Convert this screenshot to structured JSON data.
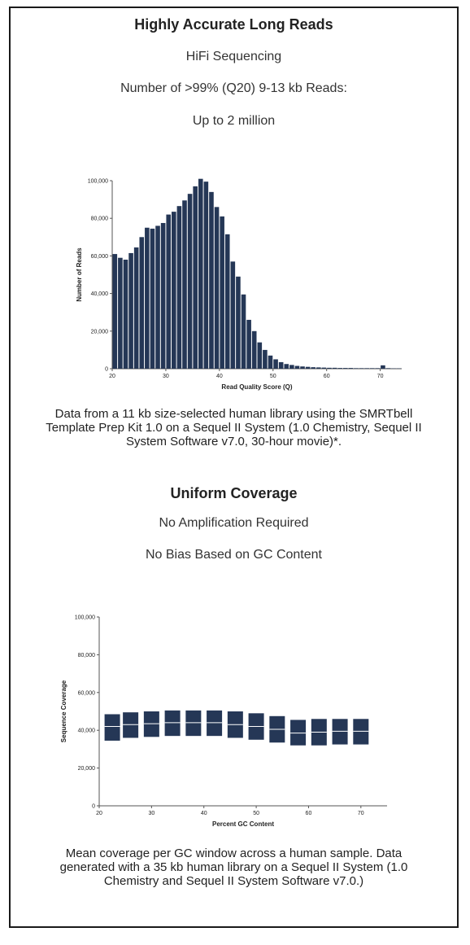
{
  "section1": {
    "title": "Highly Accurate Long Reads",
    "line1": "HiFi Sequencing",
    "line2": "Number of >99% (Q20) 9-13 kb Reads:",
    "line3": "Up to 2 million",
    "caption": "Data from a 11 kb size-selected human library using the SMRTbell Template Prep Kit 1.0 on a Sequel II System (1.0 Chemistry, Sequel II System Software v7.0, 30-hour movie)*."
  },
  "section2": {
    "title": "Uniform Coverage",
    "line1": "No Amplification Required",
    "line2": "No Bias Based on GC Content",
    "caption": "Mean coverage per GC window across a human sample. Data generated with a 35 kb human library on a Sequel II System (1.0 Chemistry and Sequel II System Software v7.0.)"
  },
  "colors": {
    "bar": "#253756",
    "axis": "#555555",
    "median": "#ffffff"
  },
  "chart_data": [
    {
      "type": "bar",
      "xlabel": "Read Quality Score (Q)",
      "ylabel": "Number of Reads",
      "xlim": [
        20,
        74
      ],
      "ylim": [
        0,
        100000
      ],
      "xticks": [
        20,
        30,
        40,
        50,
        60,
        70
      ],
      "yticks": [
        0,
        20000,
        40000,
        60000,
        80000,
        100000
      ],
      "ytick_labels": [
        "0",
        "20,000",
        "40,000",
        "60,000",
        "80,000",
        "100,000"
      ],
      "x": [
        20,
        21,
        22,
        23,
        24,
        25,
        26,
        27,
        28,
        29,
        30,
        31,
        32,
        33,
        34,
        35,
        36,
        37,
        38,
        39,
        40,
        41,
        42,
        43,
        44,
        45,
        46,
        47,
        48,
        49,
        50,
        51,
        52,
        53,
        54,
        55,
        56,
        57,
        58,
        59,
        60,
        61,
        62,
        63,
        64,
        65,
        66,
        67,
        68,
        69,
        70,
        71,
        72,
        73
      ],
      "values": [
        61000,
        59000,
        58000,
        61500,
        64500,
        70000,
        75000,
        74500,
        76000,
        77500,
        82000,
        83500,
        86500,
        89500,
        93000,
        97000,
        101000,
        99500,
        94000,
        86000,
        81000,
        71500,
        57000,
        49000,
        39500,
        26000,
        20000,
        14000,
        10000,
        7000,
        5000,
        3500,
        2500,
        2000,
        1500,
        1200,
        1000,
        800,
        700,
        600,
        500,
        500,
        400,
        400,
        400,
        300,
        300,
        300,
        300,
        300,
        1800,
        300,
        200,
        200
      ]
    },
    {
      "type": "box",
      "xlabel": "Percent GC Content",
      "ylabel": "Sequence Coverage",
      "xlim": [
        20,
        75
      ],
      "ylim": [
        0,
        100000
      ],
      "xticks": [
        20,
        30,
        40,
        50,
        60,
        70
      ],
      "yticks": [
        0,
        20000,
        40000,
        60000,
        80000,
        100000
      ],
      "ytick_labels": [
        "0",
        "20,000",
        "40,000",
        "60,000",
        "80,000",
        "100,000"
      ],
      "boxes": [
        {
          "x": 22.5,
          "q1": 34500,
          "median": 42000,
          "q3": 48500
        },
        {
          "x": 26,
          "q1": 36000,
          "median": 43000,
          "q3": 49500
        },
        {
          "x": 30,
          "q1": 36500,
          "median": 43500,
          "q3": 50000
        },
        {
          "x": 34,
          "q1": 37000,
          "median": 44000,
          "q3": 50500
        },
        {
          "x": 38,
          "q1": 37000,
          "median": 44000,
          "q3": 50500
        },
        {
          "x": 42,
          "q1": 37000,
          "median": 44000,
          "q3": 50500
        },
        {
          "x": 46,
          "q1": 36000,
          "median": 43000,
          "q3": 50000
        },
        {
          "x": 50,
          "q1": 35000,
          "median": 42000,
          "q3": 49000
        },
        {
          "x": 54,
          "q1": 33500,
          "median": 40500,
          "q3": 47500
        },
        {
          "x": 58,
          "q1": 32000,
          "median": 38500,
          "q3": 45500
        },
        {
          "x": 62,
          "q1": 32000,
          "median": 39000,
          "q3": 46000
        },
        {
          "x": 66,
          "q1": 32500,
          "median": 39500,
          "q3": 46000
        },
        {
          "x": 70,
          "q1": 32500,
          "median": 39500,
          "q3": 46000
        }
      ]
    }
  ]
}
